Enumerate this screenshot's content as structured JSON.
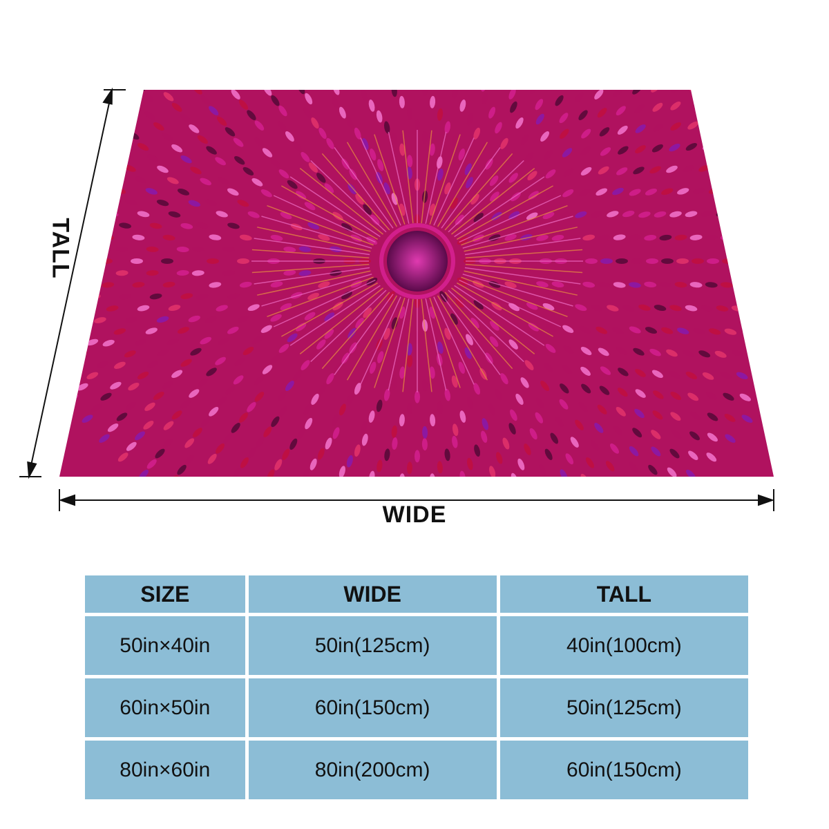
{
  "diagram": {
    "wide_label": "WIDE",
    "tall_label": "TALL"
  },
  "blanket": {
    "pattern": "pink-magenta-mandala",
    "colors": [
      "#b0125f",
      "#d21f8c",
      "#e0326a",
      "#8a1aa8",
      "#f070c8",
      "#c01040",
      "#5a0a3a"
    ]
  },
  "size_table": {
    "headers": [
      "SIZE",
      "WIDE",
      "TALL"
    ],
    "rows": [
      [
        "50in×40in",
        "50in(125cm)",
        "40in(100cm)"
      ],
      [
        "60in×50in",
        "60in(150cm)",
        "50in(125cm)"
      ],
      [
        "80in×60in",
        "80in(200cm)",
        "60in(150cm)"
      ]
    ]
  }
}
